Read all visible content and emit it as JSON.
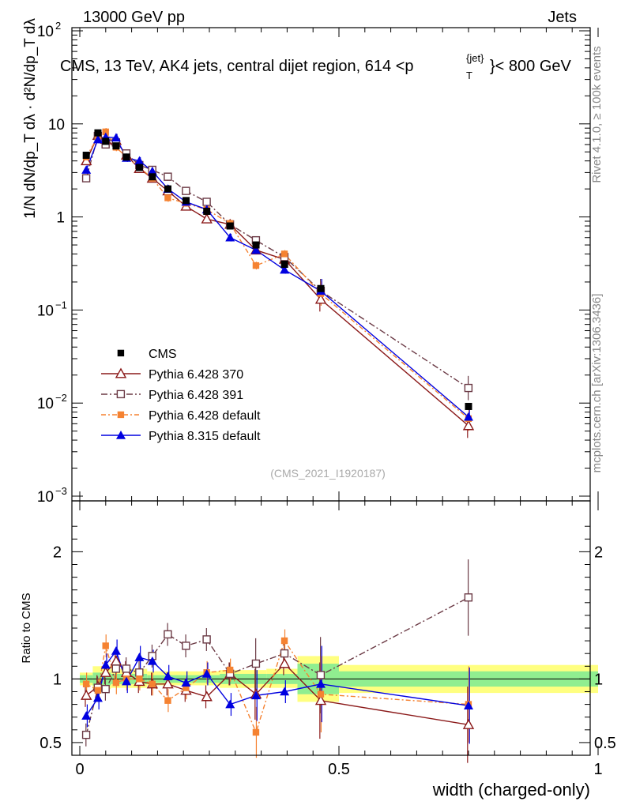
{
  "header": {
    "left": "13000 GeV pp",
    "right": "Jets"
  },
  "plot_title": "CMS, 13 TeV, AK4 jets, central dijet region, 614 <p",
  "plot_title_sub": "T",
  "plot_title_sup": "{jet}",
  "plot_title_end": "}< 800 GeV",
  "side_text": {
    "rivet": "Rivet 4.1.0, ≥ 100k events",
    "mcplots": "mcplots.cern.ch [arXiv:1306.3436]"
  },
  "analysis_id": "(CMS_2021_I1920187)",
  "ylabel_top": "1/N dN/dp_T dλ · d²N/dp_T dλ",
  "ylabel_bottom": "Ratio to CMS",
  "xlabel": "width (charged-only)",
  "colors": {
    "cms": "#000000",
    "p6_370": "#8b1a1a",
    "p6_391": "#6b3a45",
    "p6_default": "#f58231",
    "p8": "#0000e0",
    "band_yellow": "#ffff80",
    "band_green": "#90ee90"
  },
  "chart_data": {
    "type": "scatter",
    "x_range": [
      0,
      1
    ],
    "x_ticks": [
      {
        "v": 0,
        "label": "0"
      },
      {
        "v": 0.5,
        "label": "0.5"
      },
      {
        "v": 1,
        "label": "1"
      }
    ],
    "y_range_main": [
      0.001,
      100
    ],
    "y_ticks_main": [
      {
        "v": 0.001,
        "label": "10",
        "exp": "−3"
      },
      {
        "v": 0.01,
        "label": "10",
        "exp": "−2"
      },
      {
        "v": 0.1,
        "label": "10",
        "exp": "−1"
      },
      {
        "v": 1,
        "label": "1",
        "exp": ""
      },
      {
        "v": 10,
        "label": "10",
        "exp": ""
      },
      {
        "v": 100,
        "label": "10",
        "exp": "2"
      }
    ],
    "y_range_ratio": [
      0.4,
      2.4
    ],
    "y_ticks_ratio": [
      {
        "v": 0.5,
        "label": "0.5"
      },
      {
        "v": 1,
        "label": "1"
      },
      {
        "v": 2,
        "label": "2"
      }
    ],
    "x": [
      0.0125,
      0.035,
      0.05,
      0.07,
      0.09,
      0.115,
      0.14,
      0.17,
      0.205,
      0.245,
      0.29,
      0.34,
      0.395,
      0.465,
      0.75
    ],
    "cms": [
      4.6,
      8.0,
      6.5,
      5.8,
      4.4,
      3.4,
      2.7,
      2.0,
      1.5,
      1.15,
      0.8,
      0.5,
      0.31,
      0.17,
      0.0092
    ],
    "series": [
      {
        "name": "Pythia 6.428 370",
        "key": "p6_370",
        "marker": "triangle-open",
        "dash": "",
        "values": [
          4.0,
          7.5,
          6.8,
          6.6,
          4.6,
          3.3,
          2.6,
          1.9,
          1.3,
          0.95,
          0.83,
          0.44,
          0.35,
          0.13,
          0.0057
        ],
        "ratio": [
          0.87,
          0.94,
          1.05,
          1.14,
          1.05,
          0.98,
          0.96,
          0.96,
          0.91,
          0.86,
          1.04,
          0.88,
          1.12,
          0.83,
          0.64
        ]
      },
      {
        "name": "Pythia 6.428 391",
        "key": "p6_391",
        "marker": "square-open",
        "dash": "8,3,2,3",
        "values": [
          2.6,
          7.4,
          6.0,
          6.3,
          4.8,
          3.6,
          3.2,
          2.7,
          1.9,
          1.45,
          0.83,
          0.56,
          0.37,
          0.16,
          0.0145
        ],
        "ratio": [
          0.56,
          0.93,
          0.92,
          1.08,
          1.08,
          1.05,
          1.18,
          1.35,
          1.26,
          1.31,
          1.04,
          1.12,
          1.2,
          1.03,
          1.64
        ]
      },
      {
        "name": "Pythia 6.428 default",
        "key": "p6_default",
        "marker": "square",
        "dash": "6,3,2,3",
        "values": [
          4.4,
          7.3,
          8.2,
          5.6,
          4.4,
          3.4,
          2.6,
          1.6,
          1.4,
          1.2,
          0.85,
          0.3,
          0.4,
          0.15,
          0.0068
        ],
        "ratio": [
          0.96,
          0.91,
          1.26,
          0.97,
          1.0,
          1.0,
          0.96,
          0.83,
          0.93,
          1.05,
          1.07,
          0.58,
          1.3,
          0.88,
          0.8
        ]
      },
      {
        "name": "Pythia 8.315 default",
        "key": "p8",
        "marker": "triangle",
        "dash": "",
        "values": [
          3.2,
          6.8,
          7.2,
          7.1,
          4.3,
          4.0,
          3.1,
          2.0,
          1.45,
          1.2,
          0.6,
          0.44,
          0.27,
          0.16,
          0.0071
        ],
        "ratio": [
          0.71,
          0.85,
          1.11,
          1.22,
          0.98,
          1.17,
          1.14,
          1.02,
          0.97,
          1.04,
          0.8,
          0.87,
          0.9,
          0.96,
          0.79
        ]
      }
    ],
    "ratio_bands": [
      {
        "x0": 0.0,
        "x1": 0.025,
        "y": [
          0.95,
          1.05
        ],
        "g": [
          0.97,
          1.03
        ]
      },
      {
        "x0": 0.025,
        "x1": 0.06,
        "y": [
          0.92,
          1.1
        ],
        "g": [
          0.95,
          1.05
        ]
      },
      {
        "x0": 0.06,
        "x1": 0.13,
        "y": [
          0.93,
          1.08
        ],
        "g": [
          0.96,
          1.04
        ]
      },
      {
        "x0": 0.13,
        "x1": 0.27,
        "y": [
          0.95,
          1.06
        ],
        "g": [
          0.97,
          1.03
        ]
      },
      {
        "x0": 0.27,
        "x1": 0.36,
        "y": [
          0.93,
          1.07
        ],
        "g": [
          0.96,
          1.04
        ]
      },
      {
        "x0": 0.36,
        "x1": 0.42,
        "y": [
          0.93,
          1.08
        ],
        "g": [
          0.96,
          1.04
        ]
      },
      {
        "x0": 0.42,
        "x1": 0.5,
        "y": [
          0.82,
          1.18
        ],
        "g": [
          0.88,
          1.12
        ]
      },
      {
        "x0": 0.5,
        "x1": 1.0,
        "y": [
          0.89,
          1.11
        ],
        "g": [
          0.94,
          1.06
        ]
      }
    ]
  }
}
